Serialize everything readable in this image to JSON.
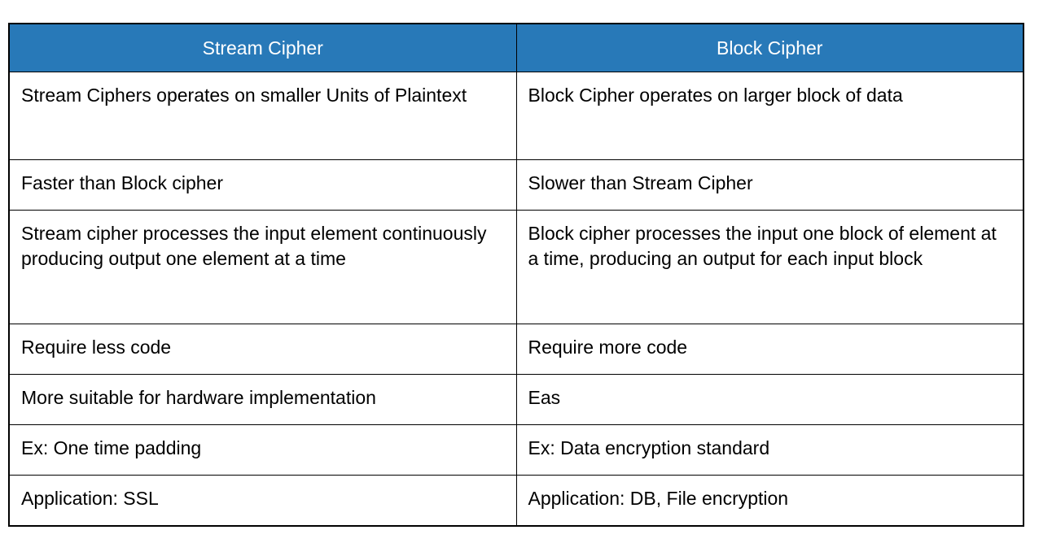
{
  "colors": {
    "header_bg": "#2879B8",
    "header_text": "#FFFFFF",
    "border": "#000000",
    "body_text": "#000000",
    "page_bg": "#FFFFFF"
  },
  "table": {
    "headers": [
      "Stream Cipher",
      "Block Cipher"
    ],
    "rows": [
      [
        "Stream Ciphers operates on smaller Units of Plaintext",
        "Block Cipher operates on larger block of data"
      ],
      [
        "Faster than Block cipher",
        "Slower than Stream Cipher"
      ],
      [
        "Stream cipher processes the input element continuously producing output one element at a time",
        "Block cipher processes the input one block of element at a time, producing an output for each input block"
      ],
      [
        "Require less code",
        "Require more code"
      ],
      [
        "More suitable for hardware implementation",
        "Eas"
      ],
      [
        "Ex: One time padding",
        "Ex: Data encryption standard"
      ],
      [
        "Application: SSL",
        "Application: DB, File encryption"
      ]
    ]
  }
}
